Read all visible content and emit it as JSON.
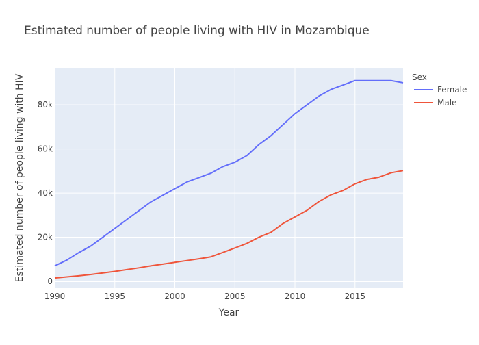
{
  "chart_data": {
    "type": "line",
    "title": "Estimated number of people living with HIV in Mozambique",
    "xlabel": "Year",
    "ylabel": "Estimated number of people living with HIV",
    "xlim": [
      1990,
      2019
    ],
    "ylim": [
      -2800,
      96500
    ],
    "x_ticks": [
      1990,
      1995,
      2000,
      2005,
      2010,
      2015
    ],
    "x_tick_labels": [
      "1990",
      "1995",
      "2000",
      "2005",
      "2010",
      "2015"
    ],
    "y_ticks": [
      0,
      20000,
      40000,
      60000,
      80000
    ],
    "y_tick_labels": [
      "0",
      "20k",
      "40k",
      "60k",
      "80k"
    ],
    "grid": true,
    "legend": {
      "title": "Sex",
      "position": "right"
    },
    "x": [
      1990,
      1991,
      1992,
      1993,
      1994,
      1995,
      1996,
      1997,
      1998,
      1999,
      2000,
      2001,
      2002,
      2003,
      2004,
      2005,
      2006,
      2007,
      2008,
      2009,
      2010,
      2011,
      2012,
      2013,
      2014,
      2015,
      2016,
      2017,
      2018,
      2019
    ],
    "series": [
      {
        "name": "Female",
        "color": "#636efa",
        "values": [
          7000,
          9600,
          13000,
          16000,
          20000,
          24000,
          28000,
          32000,
          36000,
          39000,
          42000,
          45000,
          47000,
          49000,
          52000,
          54000,
          57000,
          62000,
          66000,
          71000,
          76000,
          80000,
          84000,
          87000,
          89000,
          91000,
          91000,
          91000,
          91000,
          90000
        ]
      },
      {
        "name": "Male",
        "color": "#ef553b",
        "values": [
          1500,
          2000,
          2500,
          3100,
          3800,
          4500,
          5300,
          6100,
          7000,
          7800,
          8600,
          9400,
          10200,
          11100,
          13100,
          15100,
          17200,
          20000,
          22200,
          26200,
          29200,
          32200,
          36200,
          39200,
          41200,
          44200,
          46200,
          47200,
          49200,
          50200
        ]
      }
    ]
  }
}
